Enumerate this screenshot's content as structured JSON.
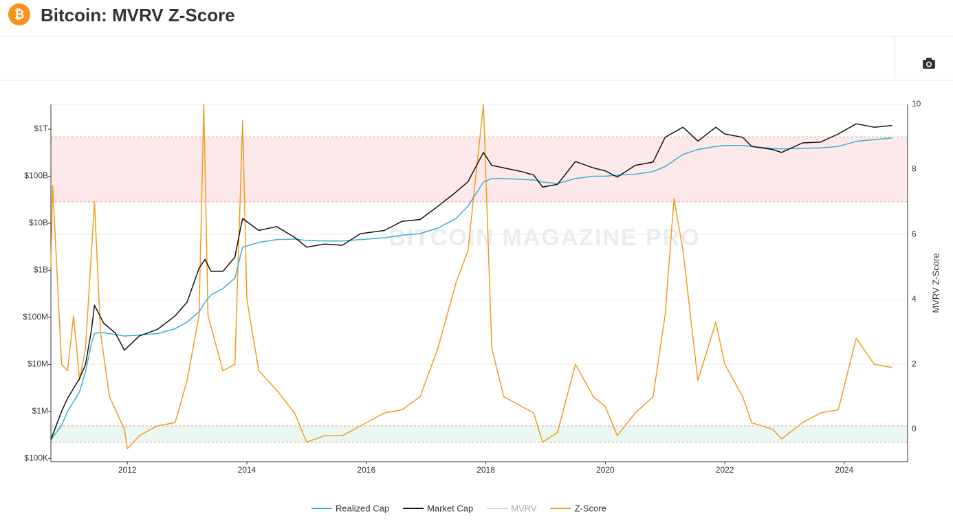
{
  "header": {
    "title": "Bitcoin: MVRV Z-Score"
  },
  "chart_data": {
    "type": "line",
    "watermark": "BITCOIN MAGAZINE PRO",
    "y2_label": "MVRV Z-Score",
    "xlim": [
      2010.72,
      2025.06
    ],
    "xticks": [
      2012,
      2014,
      2016,
      2018,
      2020,
      2022,
      2024
    ],
    "ylog": true,
    "ylim": [
      85000,
      3360000000000
    ],
    "yticks": [
      {
        "value": 100000,
        "label": "$100K"
      },
      {
        "value": 1000000,
        "label": "$1M"
      },
      {
        "value": 10000000,
        "label": "$10M"
      },
      {
        "value": 100000000,
        "label": "$100M"
      },
      {
        "value": 1000000000,
        "label": "$1B"
      },
      {
        "value": 10000000000,
        "label": "$10B"
      },
      {
        "value": 100000000000,
        "label": "$100B"
      },
      {
        "value": 1000000000000,
        "label": "$1T"
      }
    ],
    "y2lim": [
      -1,
      10
    ],
    "y2ticks": [
      0,
      2,
      4,
      6,
      8,
      10
    ],
    "grid": true,
    "bands": [
      {
        "axis": "y2",
        "from": 7,
        "to": 9,
        "color": "#fde3e3"
      },
      {
        "axis": "y2",
        "from": -0.4,
        "to": 0.1,
        "color": "#e3f7ee"
      }
    ],
    "series": [
      {
        "name": "Realized Cap",
        "color": "#3aaed8",
        "x": [
          2010.72,
          2010.9,
          2011.0,
          2011.2,
          2011.3,
          2011.4,
          2011.45,
          2011.6,
          2011.8,
          2011.95,
          2012.2,
          2012.5,
          2012.8,
          2013.0,
          2013.2,
          2013.3,
          2013.4,
          2013.6,
          2013.8,
          2013.9,
          2013.93,
          2014.2,
          2014.5,
          2014.8,
          2015.0,
          2015.3,
          2015.6,
          2015.9,
          2016.3,
          2016.6,
          2016.9,
          2017.2,
          2017.5,
          2017.7,
          2017.96,
          2018.1,
          2018.3,
          2018.6,
          2018.8,
          2018.95,
          2019.2,
          2019.5,
          2019.8,
          2020.0,
          2020.2,
          2020.5,
          2020.8,
          2021.0,
          2021.3,
          2021.55,
          2021.85,
          2022.0,
          2022.3,
          2022.45,
          2022.8,
          2022.95,
          2023.3,
          2023.6,
          2023.9,
          2024.2,
          2024.5,
          2024.8
        ],
        "values": [
          250000,
          500000,
          1000000,
          2600000,
          7000000,
          28000000,
          46000000,
          47000000,
          43000000,
          40000000,
          42000000,
          45000000,
          57000000,
          79000000,
          130000000,
          210000000,
          300000000,
          410000000,
          680000000,
          2200000000,
          3100000000,
          3900000000,
          4500000000,
          4600000000,
          4300000000,
          4200000000,
          4200000000,
          4500000000,
          4900000000,
          5600000000,
          6000000000,
          7900000000,
          12600000000,
          23000000000,
          75000000000,
          89000000000,
          89000000000,
          86000000000,
          83000000000,
          75000000000,
          70000000000,
          89000000000,
          100000000000,
          100000000000,
          105000000000,
          110000000000,
          125000000000,
          160000000000,
          290000000000,
          370000000000,
          430000000000,
          450000000000,
          450000000000,
          430000000000,
          390000000000,
          380000000000,
          390000000000,
          400000000000,
          430000000000,
          550000000000,
          600000000000,
          650000000000
        ]
      },
      {
        "name": "Market Cap",
        "color": "#111111",
        "x": [
          2010.72,
          2010.9,
          2011.0,
          2011.2,
          2011.3,
          2011.4,
          2011.45,
          2011.6,
          2011.8,
          2011.95,
          2012.2,
          2012.5,
          2012.8,
          2013.0,
          2013.2,
          2013.3,
          2013.4,
          2013.6,
          2013.8,
          2013.9,
          2013.93,
          2014.2,
          2014.5,
          2014.8,
          2015.0,
          2015.3,
          2015.6,
          2015.9,
          2016.3,
          2016.6,
          2016.9,
          2017.2,
          2017.5,
          2017.7,
          2017.96,
          2018.1,
          2018.3,
          2018.6,
          2018.8,
          2018.95,
          2019.2,
          2019.5,
          2019.8,
          2020.0,
          2020.2,
          2020.5,
          2020.8,
          2021.0,
          2021.3,
          2021.55,
          2021.85,
          2022.0,
          2022.3,
          2022.45,
          2022.8,
          2022.95,
          2023.3,
          2023.6,
          2023.9,
          2024.2,
          2024.5,
          2024.8
        ],
        "values": [
          250000,
          1000000,
          1900000,
          5000000,
          10000000,
          55000000,
          180000000,
          76000000,
          46000000,
          20000000,
          40000000,
          55000000,
          107000000,
          210000000,
          1100000000,
          1700000000,
          950000000,
          950000000,
          1900000000,
          8500000000,
          12600000000,
          7000000000,
          8500000000,
          5000000000,
          3100000000,
          3600000000,
          3400000000,
          6000000000,
          7000000000,
          11000000000,
          12000000000,
          23000000000,
          46000000000,
          76000000000,
          320000000000,
          170000000000,
          150000000000,
          125000000000,
          106000000000,
          59000000000,
          67000000000,
          205000000000,
          150000000000,
          130000000000,
          96000000000,
          170000000000,
          200000000000,
          670000000000,
          1100000000000,
          560000000000,
          1100000000000,
          790000000000,
          670000000000,
          430000000000,
          370000000000,
          320000000000,
          510000000000,
          530000000000,
          790000000000,
          1300000000000,
          1100000000000,
          1200000000000
        ]
      },
      {
        "name": "MVRV",
        "color": "#e8a6c4",
        "visible": false
      },
      {
        "name": "Z-Score",
        "color": "#f29b1d",
        "axis": "y2",
        "x": [
          2010.72,
          2010.75,
          2010.9,
          2011.0,
          2011.1,
          2011.2,
          2011.3,
          2011.45,
          2011.55,
          2011.7,
          2011.95,
          2012.0,
          2012.2,
          2012.5,
          2012.8,
          2013.0,
          2013.2,
          2013.28,
          2013.35,
          2013.6,
          2013.8,
          2013.93,
          2014.0,
          2014.2,
          2014.5,
          2014.8,
          2015.0,
          2015.3,
          2015.6,
          2015.9,
          2016.3,
          2016.6,
          2016.9,
          2017.2,
          2017.5,
          2017.7,
          2017.96,
          2018.1,
          2018.3,
          2018.6,
          2018.8,
          2018.95,
          2019.2,
          2019.5,
          2019.8,
          2020.0,
          2020.2,
          2020.5,
          2020.8,
          2021.0,
          2021.15,
          2021.3,
          2021.55,
          2021.85,
          2022.0,
          2022.3,
          2022.45,
          2022.8,
          2022.95,
          2023.3,
          2023.6,
          2023.9,
          2024.2,
          2024.5,
          2024.8
        ],
        "values": [
          5.0,
          7.5,
          2.0,
          1.8,
          3.5,
          1.5,
          2.5,
          7.0,
          3.0,
          1.0,
          0.0,
          -0.6,
          -0.2,
          0.1,
          0.2,
          1.5,
          3.5,
          10,
          3.5,
          1.8,
          2.0,
          9.5,
          4.0,
          1.8,
          1.2,
          0.5,
          -0.4,
          -0.2,
          -0.2,
          0.1,
          0.5,
          0.6,
          1.0,
          2.5,
          4.5,
          5.5,
          10,
          2.5,
          1.0,
          0.7,
          0.5,
          -0.4,
          -0.1,
          2.0,
          1.0,
          0.7,
          -0.2,
          0.5,
          1.0,
          3.5,
          7.1,
          5.5,
          1.5,
          3.3,
          2.0,
          1.0,
          0.2,
          0.0,
          -0.3,
          0.2,
          0.5,
          0.6,
          2.8,
          2.0,
          1.9
        ]
      }
    ]
  }
}
